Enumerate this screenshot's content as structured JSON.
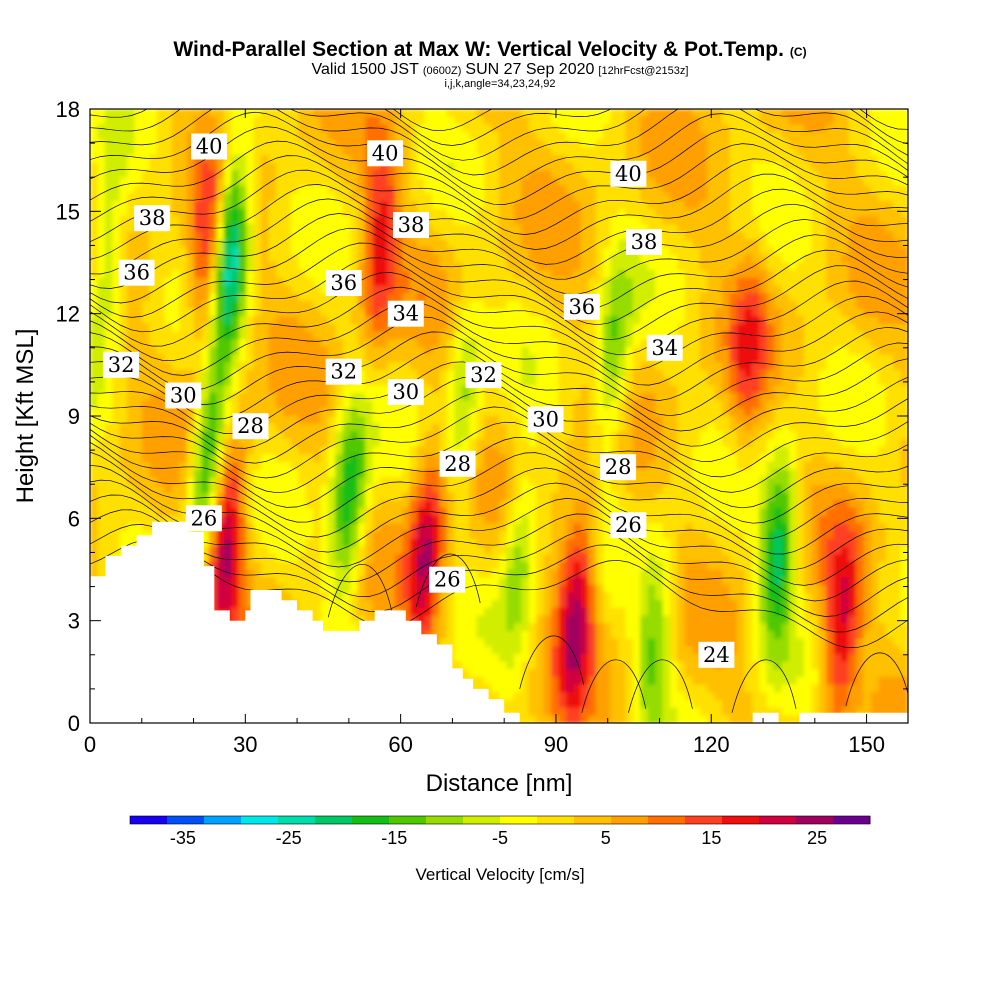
{
  "title": "Wind-Parallel Section at Max W: Vertical Velocity & Pot.Temp.",
  "title_tag": "(C)",
  "subtitle_main": "Valid 1500 JST",
  "subtitle_utc": "(0600Z)",
  "subtitle_date": "SUN 27 Sep 2020",
  "subtitle_fcst": "[12hrFcst@2153z]",
  "subtitle_indices": "i,j,k,angle=34,23,24,92",
  "chart_data": {
    "type": "heatmap",
    "xlabel": "Distance [nm]",
    "ylabel": "Height [Kft MSL]",
    "xlim": [
      0,
      158
    ],
    "ylim": [
      0,
      18
    ],
    "xticks": [
      0,
      30,
      60,
      90,
      120,
      150
    ],
    "yticks": [
      0,
      3,
      6,
      9,
      12,
      15,
      18
    ],
    "colorbar": {
      "label": "Vertical Velocity [cm/s]",
      "ticks": [
        -35,
        -25,
        -15,
        -5,
        5,
        15,
        25
      ],
      "colors": [
        "#1800f0",
        "#0050f5",
        "#00a2ff",
        "#00e8e8",
        "#00dcaa",
        "#00c864",
        "#14be14",
        "#50c800",
        "#96dc00",
        "#d2ee00",
        "#ffff00",
        "#ffe000",
        "#ffc000",
        "#ffa000",
        "#ff7000",
        "#ff4020",
        "#ee1010",
        "#d00040",
        "#a00060",
        "#6a0090"
      ]
    },
    "velocity_features": [
      {
        "x": 3,
        "z": 13.5,
        "w": -14
      },
      {
        "x": 27,
        "z": 14.0,
        "w": -32
      },
      {
        "x": 23,
        "z": 7.5,
        "w": -24
      },
      {
        "x": 23,
        "z": 13.5,
        "w": 20
      },
      {
        "x": 26,
        "z": 5.5,
        "w": 25
      },
      {
        "x": 50,
        "z": 6.5,
        "w": -22
      },
      {
        "x": 56,
        "z": 14.0,
        "w": 16
      },
      {
        "x": 65,
        "z": 5.0,
        "w": 22
      },
      {
        "x": 72,
        "z": 9.5,
        "w": -12
      },
      {
        "x": 83,
        "z": 5.0,
        "w": -14
      },
      {
        "x": 94,
        "z": 3.5,
        "w": 22
      },
      {
        "x": 101,
        "z": 10.5,
        "w": -16
      },
      {
        "x": 109,
        "z": 2.5,
        "w": -14
      },
      {
        "x": 133,
        "z": 5.0,
        "w": -22
      },
      {
        "x": 145,
        "z": 2.5,
        "w": 18
      },
      {
        "x": 127,
        "z": 11.0,
        "w": 10
      }
    ],
    "isentrope_labels": [
      {
        "value": "40",
        "x": 23,
        "z": 16.9
      },
      {
        "value": "40",
        "x": 57,
        "z": 16.7
      },
      {
        "value": "40",
        "x": 104,
        "z": 16.1
      },
      {
        "value": "38",
        "x": 12,
        "z": 14.8
      },
      {
        "value": "38",
        "x": 62,
        "z": 14.6
      },
      {
        "value": "38",
        "x": 107,
        "z": 14.1
      },
      {
        "value": "36",
        "x": 9,
        "z": 13.2
      },
      {
        "value": "36",
        "x": 49,
        "z": 12.9
      },
      {
        "value": "36",
        "x": 95,
        "z": 12.2
      },
      {
        "value": "34",
        "x": 61,
        "z": 12.0
      },
      {
        "value": "34",
        "x": 111,
        "z": 11.0
      },
      {
        "value": "32",
        "x": 6,
        "z": 10.5
      },
      {
        "value": "32",
        "x": 49,
        "z": 10.3
      },
      {
        "value": "32",
        "x": 76,
        "z": 10.2
      },
      {
        "value": "30",
        "x": 18,
        "z": 9.6
      },
      {
        "value": "30",
        "x": 61,
        "z": 9.7
      },
      {
        "value": "30",
        "x": 88,
        "z": 8.9
      },
      {
        "value": "28",
        "x": 31,
        "z": 8.7
      },
      {
        "value": "28",
        "x": 71,
        "z": 7.6
      },
      {
        "value": "28",
        "x": 102,
        "z": 7.5
      },
      {
        "value": "26",
        "x": 22,
        "z": 6.0
      },
      {
        "value": "26",
        "x": 69,
        "z": 4.2
      },
      {
        "value": "26",
        "x": 104,
        "z": 5.8
      },
      {
        "value": "24",
        "x": 121,
        "z": 2.0
      }
    ],
    "terrain_profile": [
      [
        0,
        4.3
      ],
      [
        3,
        4.3
      ],
      [
        3,
        4.9
      ],
      [
        6,
        4.9
      ],
      [
        6,
        5.2
      ],
      [
        9,
        5.2
      ],
      [
        9,
        5.5
      ],
      [
        12,
        5.5
      ],
      [
        12,
        5.9
      ],
      [
        19,
        5.9
      ],
      [
        19,
        5.6
      ],
      [
        22,
        5.6
      ],
      [
        22,
        4.6
      ],
      [
        24,
        4.6
      ],
      [
        24,
        3.3
      ],
      [
        27,
        3.3
      ],
      [
        27,
        3.0
      ],
      [
        30,
        3.0
      ],
      [
        30,
        3.3
      ],
      [
        31,
        3.3
      ],
      [
        31,
        3.9
      ],
      [
        37,
        3.9
      ],
      [
        37,
        3.6
      ],
      [
        40,
        3.6
      ],
      [
        40,
        3.3
      ],
      [
        43,
        3.3
      ],
      [
        43,
        3.0
      ],
      [
        45,
        3.0
      ],
      [
        45,
        2.7
      ],
      [
        52,
        2.7
      ],
      [
        52,
        3.0
      ],
      [
        55,
        3.0
      ],
      [
        55,
        3.3
      ],
      [
        61,
        3.3
      ],
      [
        61,
        3.0
      ],
      [
        64,
        3.0
      ],
      [
        64,
        2.6
      ],
      [
        67,
        2.6
      ],
      [
        67,
        2.3
      ],
      [
        70,
        2.3
      ],
      [
        70,
        1.6
      ],
      [
        72,
        1.6
      ],
      [
        72,
        1.3
      ],
      [
        74,
        1.3
      ],
      [
        74,
        1.0
      ],
      [
        77,
        1.0
      ],
      [
        77,
        0.7
      ],
      [
        80,
        0.7
      ],
      [
        80,
        0.3
      ],
      [
        83,
        0.3
      ],
      [
        83,
        0.0
      ],
      [
        128,
        0.0
      ],
      [
        128,
        0.3
      ],
      [
        133,
        0.3
      ],
      [
        133,
        0.0
      ],
      [
        137,
        0.0
      ],
      [
        137,
        0.3
      ],
      [
        158,
        0.3
      ]
    ]
  }
}
